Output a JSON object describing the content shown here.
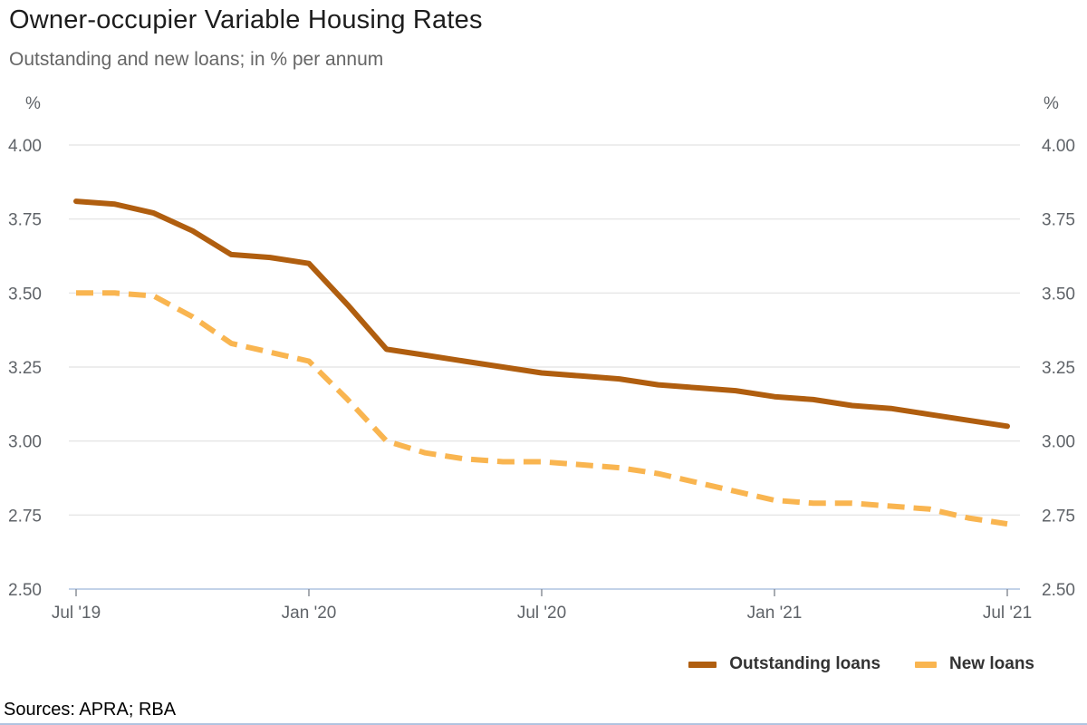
{
  "header": {
    "title": "Owner-occupier Variable Housing Rates",
    "subtitle": "Outstanding and new loans; in % per annum"
  },
  "chart_data": {
    "type": "line",
    "title": "Owner-occupier Variable Housing Rates",
    "subtitle": "Outstanding and new loans; in % per annum",
    "unit_label": "%",
    "ylim": [
      2.5,
      4.0
    ],
    "grid": true,
    "legend_position": "bottom-right",
    "x_labels": [
      "Jul '19",
      "Aug '19",
      "Sep '19",
      "Oct '19",
      "Nov '19",
      "Dec '19",
      "Jan '20",
      "Feb '20",
      "Mar '20",
      "Apr '20",
      "May '20",
      "Jun '20",
      "Jul '20",
      "Aug '20",
      "Sep '20",
      "Oct '20",
      "Nov '20",
      "Dec '20",
      "Jan '21",
      "Feb '21",
      "Mar '21",
      "Apr '21",
      "May '21",
      "Jun '21",
      "Jul '21"
    ],
    "x_tick_labels": [
      "Jul '19",
      "Jan '20",
      "Jul '20",
      "Jan '21",
      "Jul '21"
    ],
    "x_tick_indices": [
      0,
      6,
      12,
      18,
      24
    ],
    "y_ticks": [
      "4.00",
      "3.75",
      "3.50",
      "3.25",
      "3.00",
      "2.75",
      "2.50"
    ],
    "y_tick_values": [
      4.0,
      3.75,
      3.5,
      3.25,
      3.0,
      2.75,
      2.5
    ],
    "series": [
      {
        "name": "Outstanding loans",
        "line_style": "solid",
        "color": "#b05e0f",
        "values": [
          3.81,
          3.8,
          3.77,
          3.71,
          3.63,
          3.62,
          3.6,
          3.46,
          3.31,
          3.29,
          3.27,
          3.25,
          3.23,
          3.22,
          3.21,
          3.19,
          3.18,
          3.17,
          3.15,
          3.14,
          3.12,
          3.11,
          3.09,
          3.07,
          3.05
        ]
      },
      {
        "name": "New loans",
        "line_style": "dashed",
        "color": "#f9b550",
        "values": [
          3.5,
          3.5,
          3.49,
          3.42,
          3.33,
          3.3,
          3.27,
          3.14,
          3.0,
          2.96,
          2.94,
          2.93,
          2.93,
          2.92,
          2.91,
          2.89,
          2.86,
          2.83,
          2.8,
          2.79,
          2.79,
          2.78,
          2.77,
          2.74,
          2.72
        ]
      }
    ]
  },
  "footer": {
    "sources": "Sources: APRA; RBA"
  },
  "colors": {
    "outstanding": "#b05e0f",
    "new_loans": "#f9b550",
    "gridline": "#e7e7e7",
    "axis_line": "#c3d2e8",
    "tick_mark": "#8b9099",
    "axis_label": "#5f6368",
    "bottom_border": "#b0c3e0"
  }
}
